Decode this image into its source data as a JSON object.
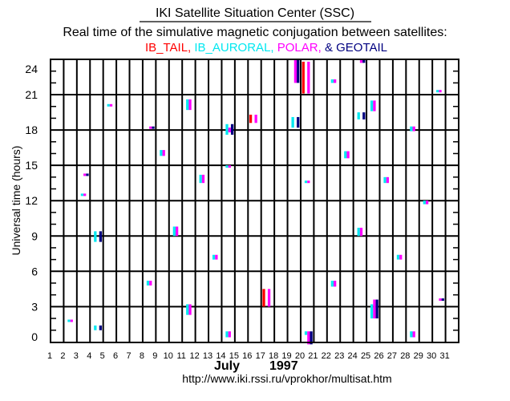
{
  "header": {
    "title": "IKI Satellite Situation Center (SSC)",
    "subtitle": "Real time of the simulative magnetic conjugation between satellites:",
    "legend": [
      {
        "label": "IB_TAIL,",
        "color": "#ff0000"
      },
      {
        "label": "IB_AURORAL,",
        "color": "#00e8f0"
      },
      {
        "label": "POLAR,",
        "color": "#ff00ff"
      },
      {
        "label": "& GEOTAIL",
        "color": "#000080"
      }
    ]
  },
  "footer": {
    "month": "July",
    "year": "1997",
    "url": "http://www.iki.rssi.ru/vprokhor/multisat.htm"
  },
  "chart_data": {
    "type": "bar",
    "title": "IKI Satellite Situation Center (SSC)",
    "subtitle": "Real time of the simulative magnetic conjugation between satellites",
    "xlabel": "July 1997",
    "ylabel": "Universal time (hours)",
    "xlim": [
      1,
      32
    ],
    "ylim": [
      0,
      24
    ],
    "grid": true,
    "xticks": [
      "1",
      "2",
      "3",
      "4",
      "5",
      "6",
      "7",
      "8",
      "9",
      "10",
      "11",
      "12",
      "13",
      "14",
      "15",
      "16",
      "17",
      "18",
      "19",
      "20",
      "21",
      "22",
      "23",
      "24",
      "25",
      "26",
      "27",
      "28",
      "29",
      "30",
      "31"
    ],
    "yticks": [
      "0",
      "3",
      "6",
      "9",
      "12",
      "15",
      "18",
      "21",
      "24"
    ],
    "bar_format": "[day_start, day_end, hour_start, hour_end]",
    "series": [
      {
        "name": "IB_TAIL",
        "color": "#ff0000",
        "bars": [
          [
            16.1,
            16.3,
            18.6,
            19.3
          ],
          [
            20.1,
            20.3,
            21.1,
            23.8
          ],
          [
            17.1,
            17.3,
            3.0,
            4.5
          ]
        ]
      },
      {
        "name": "IB_AURORAL",
        "color": "#00e8f0",
        "bars": [
          [
            5.3,
            5.5,
            20.0,
            20.2
          ],
          [
            9.3,
            9.5,
            15.8,
            16.3
          ],
          [
            11.3,
            11.5,
            19.7,
            20.6
          ],
          [
            3.3,
            3.5,
            12.4,
            12.6
          ],
          [
            4.3,
            4.5,
            8.5,
            9.4
          ],
          [
            10.3,
            10.5,
            9.0,
            9.8
          ],
          [
            8.3,
            8.5,
            4.8,
            5.2
          ],
          [
            11.3,
            11.5,
            2.3,
            3.2
          ],
          [
            2.3,
            2.5,
            1.7,
            1.9
          ],
          [
            4.3,
            4.5,
            1.0,
            1.4
          ],
          [
            14.3,
            14.5,
            17.6,
            18.5
          ],
          [
            19.3,
            19.5,
            18.2,
            19.1
          ],
          [
            14.3,
            14.5,
            14.8,
            15.0
          ],
          [
            12.3,
            12.5,
            13.5,
            14.2
          ],
          [
            20.3,
            20.5,
            13.5,
            13.7
          ],
          [
            13.3,
            13.5,
            7.0,
            7.4
          ],
          [
            14.3,
            14.5,
            0.4,
            0.9
          ],
          [
            20.3,
            20.5,
            0.6,
            0.9
          ],
          [
            22.3,
            22.5,
            22.0,
            22.3
          ],
          [
            30.3,
            30.5,
            21.2,
            21.4
          ],
          [
            25.3,
            25.5,
            19.6,
            20.5
          ],
          [
            24.3,
            24.5,
            18.9,
            19.5
          ],
          [
            28.3,
            28.5,
            17.9,
            18.3
          ],
          [
            23.3,
            23.5,
            15.6,
            16.2
          ],
          [
            26.3,
            26.5,
            13.5,
            14.0
          ],
          [
            29.3,
            29.5,
            11.7,
            12.0
          ],
          [
            24.3,
            24.5,
            9.0,
            9.7
          ],
          [
            27.3,
            27.5,
            7.0,
            7.4
          ],
          [
            22.3,
            22.5,
            4.7,
            5.2
          ],
          [
            25.3,
            25.5,
            2.0,
            3.2
          ],
          [
            28.3,
            28.5,
            0.4,
            0.9
          ]
        ]
      },
      {
        "name": "POLAR",
        "color": "#ff00ff",
        "bars": [
          [
            5.5,
            5.7,
            20.0,
            20.2
          ],
          [
            8.5,
            8.7,
            18.1,
            18.3
          ],
          [
            9.5,
            9.7,
            15.8,
            16.3
          ],
          [
            11.5,
            11.7,
            19.7,
            20.6
          ],
          [
            3.5,
            3.7,
            14.1,
            14.3
          ],
          [
            3.5,
            3.7,
            12.4,
            12.6
          ],
          [
            10.5,
            10.7,
            9.0,
            9.8
          ],
          [
            8.5,
            8.7,
            4.8,
            5.2
          ],
          [
            11.5,
            11.7,
            2.3,
            3.2
          ],
          [
            2.5,
            2.7,
            1.7,
            1.9
          ],
          [
            16.5,
            16.7,
            18.6,
            19.3
          ],
          [
            14.5,
            14.7,
            17.8,
            18.2
          ],
          [
            19.5,
            19.7,
            22.0,
            24.0
          ],
          [
            20.5,
            20.7,
            21.1,
            23.8
          ],
          [
            14.5,
            14.7,
            14.8,
            15.0
          ],
          [
            12.5,
            12.7,
            13.5,
            14.2
          ],
          [
            20.5,
            20.7,
            13.5,
            13.7
          ],
          [
            13.5,
            13.7,
            7.0,
            7.4
          ],
          [
            17.5,
            17.7,
            3.0,
            4.5
          ],
          [
            14.5,
            14.7,
            0.4,
            0.9
          ],
          [
            20.5,
            20.7,
            -0.2,
            0.9
          ],
          [
            24.5,
            24.7,
            23.7,
            24.0
          ],
          [
            22.5,
            22.7,
            22.0,
            22.3
          ],
          [
            30.5,
            30.7,
            21.2,
            21.4
          ],
          [
            25.5,
            25.7,
            19.6,
            20.5
          ],
          [
            28.5,
            28.7,
            17.9,
            18.3
          ],
          [
            23.5,
            23.7,
            15.6,
            16.2
          ],
          [
            26.5,
            26.7,
            13.5,
            14.0
          ],
          [
            29.5,
            29.7,
            11.7,
            12.0
          ],
          [
            24.5,
            24.7,
            9.0,
            9.7
          ],
          [
            27.5,
            27.7,
            7.0,
            7.4
          ],
          [
            22.5,
            22.7,
            4.7,
            5.2
          ],
          [
            30.5,
            30.7,
            3.5,
            3.7
          ],
          [
            25.5,
            25.7,
            2.0,
            3.6
          ],
          [
            28.5,
            28.7,
            0.4,
            0.9
          ]
        ]
      },
      {
        "name": "GEOTAIL",
        "color": "#000080",
        "bars": [
          [
            8.7,
            8.9,
            18.1,
            18.3
          ],
          [
            3.7,
            3.9,
            14.1,
            14.3
          ],
          [
            4.7,
            4.9,
            8.5,
            9.4
          ],
          [
            4.7,
            4.9,
            1.0,
            1.4
          ],
          [
            14.7,
            14.9,
            17.6,
            18.5
          ],
          [
            19.7,
            19.9,
            18.2,
            19.1
          ],
          [
            19.7,
            19.9,
            22.0,
            24.0
          ],
          [
            20.7,
            20.9,
            -0.2,
            0.9
          ],
          [
            24.7,
            24.9,
            23.7,
            24.0
          ],
          [
            24.7,
            24.9,
            18.9,
            19.5
          ],
          [
            30.7,
            30.9,
            3.5,
            3.7
          ],
          [
            25.7,
            25.9,
            2.0,
            3.6
          ]
        ]
      }
    ]
  }
}
